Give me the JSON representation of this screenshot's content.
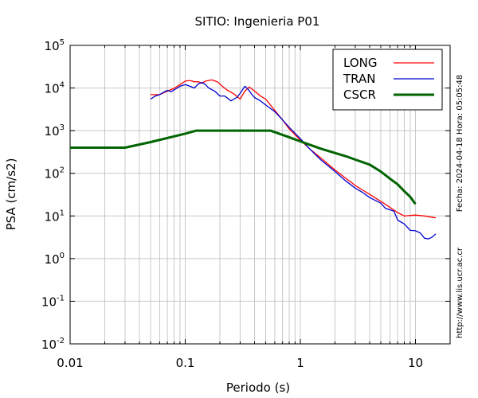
{
  "chart_data": {
    "type": "line",
    "title": "SITIO: Ingenieria P01",
    "xlabel": "Periodo (s)",
    "ylabel": "PSA (cm/s2)",
    "xscale": "log",
    "yscale": "log",
    "xlim": [
      0.01,
      20
    ],
    "ylim": [
      0.01,
      100000
    ],
    "grid": true,
    "legend_position": "top-right",
    "x_ticks": [
      {
        "value": 0.01,
        "label": "0.01"
      },
      {
        "value": 0.1,
        "label": "0.1"
      },
      {
        "value": 1,
        "label": "1"
      },
      {
        "value": 10,
        "label": "10"
      }
    ],
    "y_ticks": [
      {
        "value": 0.01,
        "base": "10",
        "exp": "-2"
      },
      {
        "value": 0.1,
        "base": "10",
        "exp": "-1"
      },
      {
        "value": 1,
        "base": "10",
        "exp": "0"
      },
      {
        "value": 10,
        "base": "10",
        "exp": "1"
      },
      {
        "value": 100,
        "base": "10",
        "exp": "2"
      },
      {
        "value": 1000,
        "base": "10",
        "exp": "3"
      },
      {
        "value": 10000,
        "base": "10",
        "exp": "4"
      },
      {
        "value": 100000,
        "base": "10",
        "exp": "5"
      }
    ],
    "series": [
      {
        "name": "LONG",
        "color": "#ff0000",
        "width": 1.3,
        "points": [
          [
            0.05,
            7000
          ],
          [
            0.06,
            7000
          ],
          [
            0.07,
            8500
          ],
          [
            0.08,
            9800
          ],
          [
            0.09,
            12000
          ],
          [
            0.1,
            14500
          ],
          [
            0.11,
            15000
          ],
          [
            0.12,
            14000
          ],
          [
            0.13,
            14000
          ],
          [
            0.14,
            13000
          ],
          [
            0.15,
            14500
          ],
          [
            0.17,
            15500
          ],
          [
            0.19,
            14000
          ],
          [
            0.21,
            11000
          ],
          [
            0.23,
            9000
          ],
          [
            0.25,
            8000
          ],
          [
            0.27,
            7000
          ],
          [
            0.3,
            5500
          ],
          [
            0.33,
            8500
          ],
          [
            0.36,
            10500
          ],
          [
            0.4,
            8500
          ],
          [
            0.45,
            6500
          ],
          [
            0.5,
            5500
          ],
          [
            0.55,
            4000
          ],
          [
            0.6,
            3000
          ],
          [
            0.7,
            1800
          ],
          [
            0.8,
            1100
          ],
          [
            0.9,
            800
          ],
          [
            1.0,
            600
          ],
          [
            1.2,
            380
          ],
          [
            1.5,
            230
          ],
          [
            2.0,
            120
          ],
          [
            2.5,
            75
          ],
          [
            3.0,
            52
          ],
          [
            3.5,
            40
          ],
          [
            4.0,
            32
          ],
          [
            5.0,
            22
          ],
          [
            6.0,
            16
          ],
          [
            7.0,
            12
          ],
          [
            8.0,
            10
          ],
          [
            10.0,
            10.5
          ],
          [
            12.0,
            10
          ],
          [
            15.0,
            9
          ]
        ]
      },
      {
        "name": "TRAN",
        "color": "#0000d0",
        "width": 1.3,
        "points": [
          [
            0.05,
            5500
          ],
          [
            0.055,
            6500
          ],
          [
            0.06,
            7000
          ],
          [
            0.065,
            8000
          ],
          [
            0.07,
            8800
          ],
          [
            0.075,
            8200
          ],
          [
            0.08,
            9000
          ],
          [
            0.09,
            11000
          ],
          [
            0.1,
            12000
          ],
          [
            0.11,
            11000
          ],
          [
            0.12,
            10000
          ],
          [
            0.13,
            12500
          ],
          [
            0.14,
            13500
          ],
          [
            0.15,
            12000
          ],
          [
            0.16,
            10000
          ],
          [
            0.18,
            8500
          ],
          [
            0.2,
            6500
          ],
          [
            0.22,
            6500
          ],
          [
            0.25,
            5000
          ],
          [
            0.28,
            6000
          ],
          [
            0.3,
            7500
          ],
          [
            0.33,
            11000
          ],
          [
            0.35,
            9500
          ],
          [
            0.38,
            7000
          ],
          [
            0.4,
            6000
          ],
          [
            0.45,
            5000
          ],
          [
            0.5,
            4000
          ],
          [
            0.6,
            2800
          ],
          [
            0.7,
            1800
          ],
          [
            0.8,
            1200
          ],
          [
            1.0,
            650
          ],
          [
            1.2,
            380
          ],
          [
            1.5,
            210
          ],
          [
            2.0,
            110
          ],
          [
            2.5,
            65
          ],
          [
            3.0,
            45
          ],
          [
            3.5,
            35
          ],
          [
            4.0,
            27
          ],
          [
            5.0,
            20
          ],
          [
            5.5,
            15
          ],
          [
            6.0,
            14
          ],
          [
            6.5,
            13
          ],
          [
            7.0,
            8
          ],
          [
            8.0,
            6.5
          ],
          [
            9.0,
            4.6
          ],
          [
            10.0,
            4.5
          ],
          [
            11.0,
            4.0
          ],
          [
            12.0,
            3.0
          ],
          [
            13.0,
            2.9
          ],
          [
            14.0,
            3.2
          ],
          [
            15.0,
            3.8
          ]
        ]
      },
      {
        "name": "CSCR",
        "color": "#006400",
        "width": 3,
        "points": [
          [
            0.01,
            400
          ],
          [
            0.03,
            400
          ],
          [
            0.05,
            540
          ],
          [
            0.1,
            850
          ],
          [
            0.125,
            1000
          ],
          [
            0.55,
            1000
          ],
          [
            0.8,
            700
          ],
          [
            1.0,
            560
          ],
          [
            1.2,
            470
          ],
          [
            1.5,
            380
          ],
          [
            2.0,
            300
          ],
          [
            2.5,
            250
          ],
          [
            3.0,
            210
          ],
          [
            4.0,
            160
          ],
          [
            5.0,
            110
          ],
          [
            6.0,
            75
          ],
          [
            7.0,
            55
          ],
          [
            8.0,
            38
          ],
          [
            9.0,
            28
          ],
          [
            10.0,
            19
          ]
        ]
      }
    ],
    "annotations": {
      "date_text": "Fecha: 2024-04-18 Hora: 05:05:48",
      "url_text": "http://www.lis.ucr.ac.cr"
    }
  }
}
